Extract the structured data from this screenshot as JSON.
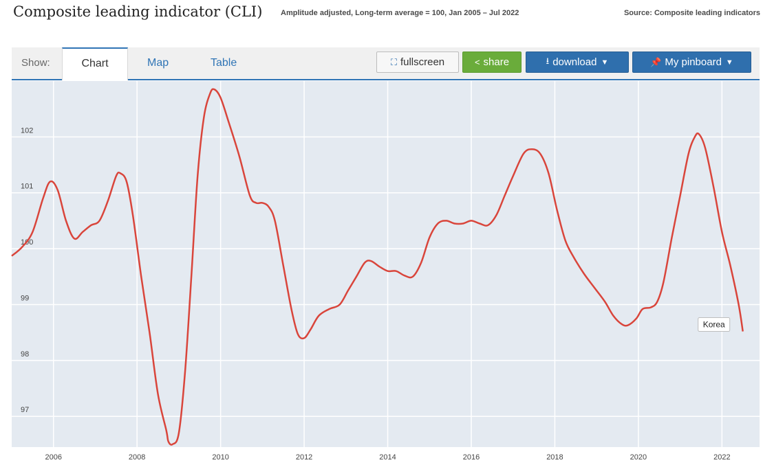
{
  "header": {
    "title": "Composite leading indicator (CLI)",
    "subtitle": "Amplitude adjusted, Long-term average = 100, Jan 2005 – Jul 2022",
    "source": "Source: Composite leading indicators"
  },
  "toolbar": {
    "show_label": "Show:",
    "tabs": [
      {
        "label": "Chart",
        "active": true
      },
      {
        "label": "Map",
        "active": false
      },
      {
        "label": "Table",
        "active": false
      }
    ],
    "fullscreen_label": "fullscreen",
    "share_label": "share",
    "download_label": "download",
    "pinboard_label": "My pinboard"
  },
  "colors": {
    "accent": "#2f74b5",
    "series": "#d9453b",
    "plot_bg": "#e4eaf1",
    "share_green": "#6aac3b"
  },
  "chart_data": {
    "type": "line",
    "xlim": [
      2005.0,
      2022.9
    ],
    "ylim": [
      96.45,
      103.0
    ],
    "y_ticks": [
      97,
      98,
      99,
      100,
      101,
      102
    ],
    "x_ticks": [
      2006,
      2008,
      2010,
      2012,
      2014,
      2016,
      2018,
      2020,
      2022
    ],
    "grid": true,
    "series": [
      {
        "name": "Korea",
        "points": [
          [
            2005.0,
            99.87
          ],
          [
            2005.25,
            100.03
          ],
          [
            2005.5,
            100.3
          ],
          [
            2005.75,
            100.9
          ],
          [
            2005.92,
            101.2
          ],
          [
            2006.1,
            101.05
          ],
          [
            2006.3,
            100.5
          ],
          [
            2006.5,
            100.18
          ],
          [
            2006.7,
            100.3
          ],
          [
            2006.9,
            100.42
          ],
          [
            2007.1,
            100.5
          ],
          [
            2007.3,
            100.85
          ],
          [
            2007.5,
            101.3
          ],
          [
            2007.6,
            101.35
          ],
          [
            2007.75,
            101.2
          ],
          [
            2007.9,
            100.6
          ],
          [
            2008.1,
            99.5
          ],
          [
            2008.3,
            98.5
          ],
          [
            2008.5,
            97.4
          ],
          [
            2008.7,
            96.75
          ],
          [
            2008.75,
            96.55
          ],
          [
            2008.85,
            96.5
          ],
          [
            2009.0,
            96.7
          ],
          [
            2009.15,
            97.8
          ],
          [
            2009.3,
            99.5
          ],
          [
            2009.45,
            101.3
          ],
          [
            2009.6,
            102.35
          ],
          [
            2009.75,
            102.78
          ],
          [
            2009.85,
            102.85
          ],
          [
            2010.0,
            102.7
          ],
          [
            2010.2,
            102.25
          ],
          [
            2010.45,
            101.65
          ],
          [
            2010.7,
            100.95
          ],
          [
            2010.85,
            100.82
          ],
          [
            2011.0,
            100.82
          ],
          [
            2011.15,
            100.75
          ],
          [
            2011.3,
            100.5
          ],
          [
            2011.5,
            99.7
          ],
          [
            2011.7,
            98.9
          ],
          [
            2011.85,
            98.47
          ],
          [
            2012.0,
            98.4
          ],
          [
            2012.15,
            98.55
          ],
          [
            2012.35,
            98.8
          ],
          [
            2012.6,
            98.92
          ],
          [
            2012.85,
            99.0
          ],
          [
            2013.05,
            99.25
          ],
          [
            2013.25,
            99.5
          ],
          [
            2013.45,
            99.75
          ],
          [
            2013.6,
            99.78
          ],
          [
            2013.8,
            99.68
          ],
          [
            2014.0,
            99.6
          ],
          [
            2014.2,
            99.6
          ],
          [
            2014.4,
            99.52
          ],
          [
            2014.6,
            99.5
          ],
          [
            2014.8,
            99.75
          ],
          [
            2015.0,
            100.2
          ],
          [
            2015.2,
            100.45
          ],
          [
            2015.4,
            100.5
          ],
          [
            2015.6,
            100.45
          ],
          [
            2015.8,
            100.45
          ],
          [
            2016.0,
            100.5
          ],
          [
            2016.2,
            100.45
          ],
          [
            2016.4,
            100.42
          ],
          [
            2016.6,
            100.6
          ],
          [
            2016.8,
            100.95
          ],
          [
            2017.0,
            101.3
          ],
          [
            2017.25,
            101.7
          ],
          [
            2017.45,
            101.78
          ],
          [
            2017.65,
            101.7
          ],
          [
            2017.85,
            101.35
          ],
          [
            2018.05,
            100.7
          ],
          [
            2018.25,
            100.15
          ],
          [
            2018.45,
            99.85
          ],
          [
            2018.7,
            99.55
          ],
          [
            2018.95,
            99.3
          ],
          [
            2019.2,
            99.05
          ],
          [
            2019.4,
            98.8
          ],
          [
            2019.6,
            98.65
          ],
          [
            2019.75,
            98.63
          ],
          [
            2019.95,
            98.75
          ],
          [
            2020.1,
            98.92
          ],
          [
            2020.3,
            98.95
          ],
          [
            2020.45,
            99.05
          ],
          [
            2020.6,
            99.4
          ],
          [
            2020.8,
            100.2
          ],
          [
            2021.0,
            100.95
          ],
          [
            2021.2,
            101.7
          ],
          [
            2021.35,
            102.0
          ],
          [
            2021.45,
            102.05
          ],
          [
            2021.6,
            101.8
          ],
          [
            2021.8,
            101.1
          ],
          [
            2022.0,
            100.3
          ],
          [
            2022.2,
            99.7
          ],
          [
            2022.4,
            99.0
          ],
          [
            2022.5,
            98.52
          ]
        ]
      }
    ]
  }
}
